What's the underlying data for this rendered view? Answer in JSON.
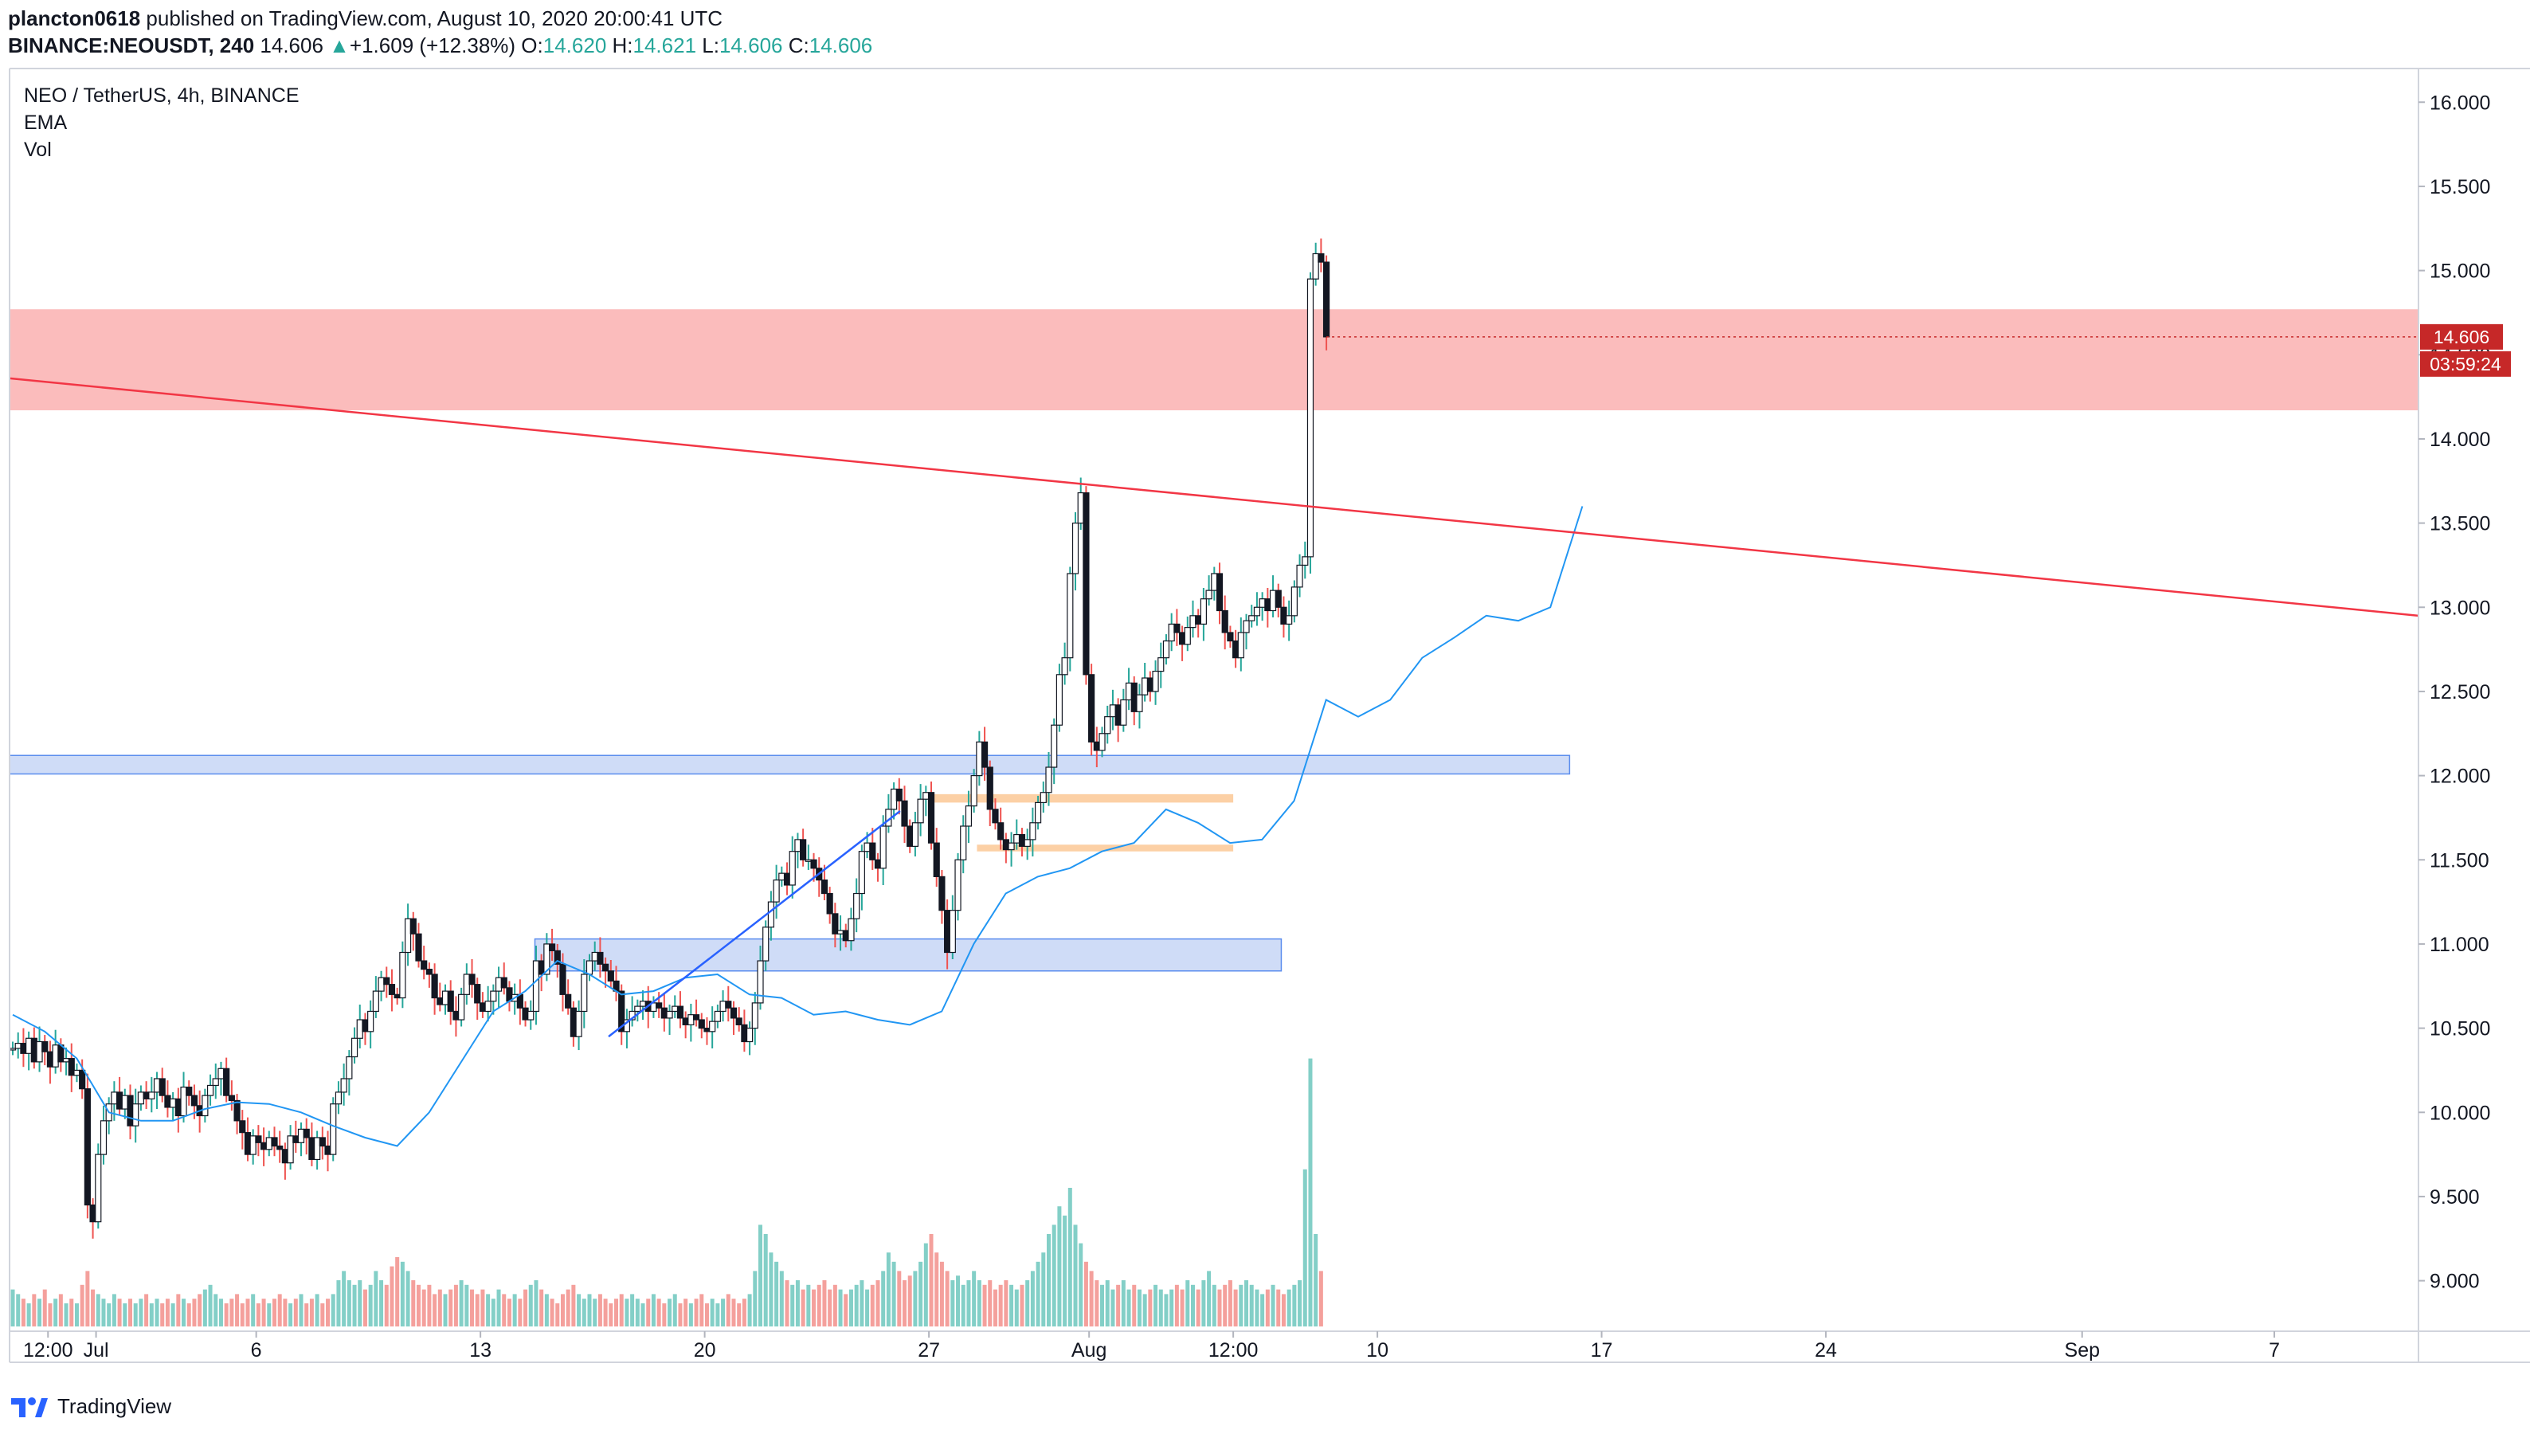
{
  "header": {
    "author": "plancton0618",
    "published_text": " published on TradingView.com, August 10, 2020 20:00:41 UTC",
    "symbol_line": "BINANCE:NEOUSDT, 240",
    "last_price": "14.606",
    "change_arrow": "▲",
    "change": "+1.609 (+12.38%)",
    "o_label": "O:",
    "o_value": "14.620",
    "h_label": "H:",
    "h_value": "14.621",
    "l_label": "L:",
    "l_value": "14.606",
    "c_label": "C:",
    "c_value": "14.606"
  },
  "footer": {
    "brand": "TradingView",
    "brand_icon": "tradingview-logo-icon"
  },
  "colors": {
    "bull": "#26a69a",
    "bear": "#ef5350",
    "candle_body": "#131722",
    "ema": "#2196f3",
    "resistance_line": "#f23645",
    "supply_zone": "#fbbcbc",
    "demand_zone": "#cfdcf7",
    "demand_zone_border": "#5b8dee",
    "orange_zone": "#fcd0a5",
    "channel_line": "#2962ff",
    "price_label_bg": "#c62828",
    "vol_up": "#83cfc7",
    "vol_down": "#f4a09c"
  },
  "chart_data": {
    "type": "candlestick",
    "title": "NEO / TetherUS, 4h, BINANCE",
    "indicators": [
      "EMA",
      "Vol"
    ],
    "ylim": [
      8.7,
      16.2
    ],
    "y_ticks": [
      9.0,
      9.5,
      10.0,
      10.5,
      11.0,
      11.5,
      12.0,
      12.5,
      13.0,
      13.5,
      14.0,
      14.5,
      15.0,
      15.5,
      16.0
    ],
    "y_tick_labels": [
      "9.000",
      "9.500",
      "10.000",
      "10.500",
      "11.000",
      "11.500",
      "12.000",
      "12.500",
      "13.000",
      "13.500",
      "14.000",
      "14.500",
      "15.000",
      "15.500",
      "16.000"
    ],
    "x_tick_labels": [
      "12:00",
      "Jul",
      "6",
      "13",
      "20",
      "27",
      "Aug",
      "12:00",
      "10",
      "17",
      "24",
      "Sep",
      "7"
    ],
    "x_tick_days": [
      -0.5,
      1,
      6,
      13,
      20,
      27,
      32,
      36.5,
      41,
      48,
      55,
      63,
      69
    ],
    "x_range_days": [
      -1.7,
      73.5
    ],
    "last_price_label": "14.606",
    "countdown_label": "03:59:24",
    "ema_last": 13.6,
    "candles": {
      "start_day": -1.6,
      "bar_days": 0.1667,
      "open0": 10.38,
      "closes": [
        10.38,
        10.41,
        10.35,
        10.44,
        10.3,
        10.42,
        10.36,
        10.27,
        10.4,
        10.3,
        10.32,
        10.22,
        10.25,
        10.14,
        9.45,
        9.35,
        9.75,
        9.95,
        10.05,
        10.12,
        10.02,
        10.1,
        9.92,
        10.05,
        10.12,
        10.08,
        10.12,
        10.2,
        10.1,
        10.03,
        10.08,
        9.98,
        10.15,
        10.1,
        10.04,
        9.98,
        10.1,
        10.16,
        10.2,
        10.26,
        10.1,
        10.07,
        9.95,
        9.88,
        9.75,
        9.86,
        9.82,
        9.78,
        9.85,
        9.8,
        9.78,
        9.7,
        9.86,
        9.82,
        9.9,
        9.85,
        9.72,
        9.85,
        9.8,
        9.75,
        10.05,
        10.12,
        10.2,
        10.33,
        10.44,
        10.55,
        10.48,
        10.6,
        10.72,
        10.8,
        10.76,
        10.7,
        10.68,
        10.95,
        11.15,
        11.06,
        10.9,
        10.85,
        10.82,
        10.68,
        10.64,
        10.72,
        10.6,
        10.55,
        10.7,
        10.82,
        10.76,
        10.65,
        10.6,
        10.66,
        10.72,
        10.8,
        10.74,
        10.66,
        10.7,
        10.62,
        10.55,
        10.6,
        10.9,
        10.82,
        11.0,
        10.96,
        10.88,
        10.7,
        10.62,
        10.45,
        10.6,
        10.82,
        10.9,
        10.95,
        10.88,
        10.84,
        10.78,
        10.72,
        10.48,
        10.55,
        10.6,
        10.63,
        10.66,
        10.6,
        10.65,
        10.62,
        10.56,
        10.6,
        10.63,
        10.56,
        10.52,
        10.58,
        10.55,
        10.5,
        10.48,
        10.54,
        10.6,
        10.66,
        10.62,
        10.56,
        10.52,
        10.42,
        10.5,
        10.65,
        10.9,
        11.1,
        11.25,
        11.38,
        11.42,
        11.35,
        11.55,
        11.62,
        11.5,
        11.5,
        11.45,
        11.38,
        11.3,
        11.18,
        11.06,
        11.08,
        11.02,
        11.15,
        11.3,
        11.55,
        11.6,
        11.5,
        11.45,
        11.7,
        11.8,
        11.92,
        11.85,
        11.7,
        11.58,
        11.72,
        11.86,
        11.9,
        11.6,
        11.4,
        11.2,
        10.95,
        11.2,
        11.5,
        11.7,
        11.82,
        12.0,
        12.2,
        12.05,
        11.8,
        11.72,
        11.62,
        11.56,
        11.6,
        11.65,
        11.58,
        11.62,
        11.72,
        11.84,
        11.9,
        12.05,
        12.3,
        12.6,
        12.7,
        13.2,
        13.5,
        13.68,
        12.6,
        12.2,
        12.15,
        12.25,
        12.35,
        12.42,
        12.3,
        12.45,
        12.55,
        12.38,
        12.48,
        12.58,
        12.5,
        12.62,
        12.7,
        12.8,
        12.9,
        12.85,
        12.78,
        12.88,
        12.95,
        12.9,
        13.05,
        13.1,
        13.2,
        12.98,
        12.85,
        12.8,
        12.7,
        12.85,
        12.92,
        12.95,
        13.0,
        13.05,
        12.98,
        13.1,
        13.0,
        12.9,
        12.95,
        13.12,
        13.25,
        13.3,
        14.95,
        15.1,
        15.05,
        14.606
      ]
    },
    "ema": {
      "start_day": -1.6,
      "step_days": 1.0,
      "values": [
        10.58,
        10.48,
        10.32,
        10.0,
        9.95,
        9.95,
        10.02,
        10.06,
        10.05,
        10.0,
        9.92,
        9.85,
        9.8,
        10.0,
        10.3,
        10.6,
        10.72,
        10.9,
        10.82,
        10.7,
        10.72,
        10.8,
        10.82,
        10.7,
        10.68,
        10.58,
        10.6,
        10.55,
        10.52,
        10.6,
        11.0,
        11.3,
        11.4,
        11.45,
        11.55,
        11.6,
        11.8,
        11.72,
        11.6,
        11.62,
        11.85,
        12.45,
        12.35,
        12.45,
        12.7,
        12.82,
        12.95,
        12.92,
        13.0,
        13.6
      ]
    },
    "volume": {
      "start_day": -1.6,
      "bar_days": 0.1667,
      "max": 1,
      "values": [
        0.08,
        0.07,
        0.06,
        0.05,
        0.07,
        0.06,
        0.08,
        0.05,
        0.06,
        0.07,
        0.05,
        0.06,
        0.05,
        0.09,
        0.12,
        0.08,
        0.07,
        0.06,
        0.05,
        0.07,
        0.06,
        0.05,
        0.06,
        0.05,
        0.06,
        0.07,
        0.05,
        0.06,
        0.05,
        0.06,
        0.05,
        0.07,
        0.06,
        0.05,
        0.06,
        0.07,
        0.08,
        0.09,
        0.07,
        0.06,
        0.05,
        0.06,
        0.07,
        0.05,
        0.06,
        0.07,
        0.05,
        0.06,
        0.05,
        0.06,
        0.07,
        0.06,
        0.05,
        0.06,
        0.07,
        0.05,
        0.06,
        0.07,
        0.05,
        0.06,
        0.07,
        0.1,
        0.12,
        0.1,
        0.09,
        0.1,
        0.08,
        0.09,
        0.12,
        0.1,
        0.09,
        0.13,
        0.15,
        0.14,
        0.12,
        0.1,
        0.09,
        0.08,
        0.09,
        0.07,
        0.08,
        0.07,
        0.08,
        0.09,
        0.1,
        0.09,
        0.08,
        0.07,
        0.08,
        0.07,
        0.06,
        0.08,
        0.07,
        0.06,
        0.07,
        0.06,
        0.08,
        0.09,
        0.1,
        0.08,
        0.07,
        0.06,
        0.05,
        0.07,
        0.08,
        0.09,
        0.07,
        0.06,
        0.07,
        0.06,
        0.07,
        0.06,
        0.05,
        0.06,
        0.07,
        0.06,
        0.07,
        0.06,
        0.05,
        0.06,
        0.07,
        0.06,
        0.05,
        0.06,
        0.07,
        0.05,
        0.06,
        0.05,
        0.06,
        0.07,
        0.05,
        0.06,
        0.05,
        0.06,
        0.07,
        0.06,
        0.05,
        0.06,
        0.07,
        0.12,
        0.22,
        0.2,
        0.16,
        0.14,
        0.12,
        0.1,
        0.09,
        0.1,
        0.08,
        0.09,
        0.08,
        0.09,
        0.1,
        0.08,
        0.09,
        0.08,
        0.07,
        0.08,
        0.09,
        0.1,
        0.08,
        0.09,
        0.1,
        0.12,
        0.16,
        0.14,
        0.12,
        0.1,
        0.11,
        0.12,
        0.14,
        0.18,
        0.2,
        0.16,
        0.14,
        0.12,
        0.1,
        0.11,
        0.09,
        0.1,
        0.12,
        0.1,
        0.09,
        0.1,
        0.08,
        0.09,
        0.1,
        0.09,
        0.08,
        0.09,
        0.1,
        0.12,
        0.14,
        0.16,
        0.2,
        0.22,
        0.26,
        0.24,
        0.3,
        0.22,
        0.18,
        0.14,
        0.12,
        0.1,
        0.09,
        0.1,
        0.08,
        0.09,
        0.1,
        0.08,
        0.09,
        0.08,
        0.07,
        0.08,
        0.09,
        0.08,
        0.07,
        0.08,
        0.09,
        0.08,
        0.1,
        0.09,
        0.08,
        0.1,
        0.12,
        0.09,
        0.08,
        0.09,
        0.1,
        0.08,
        0.09,
        0.1,
        0.09,
        0.08,
        0.07,
        0.08,
        0.09,
        0.08,
        0.07,
        0.08,
        0.09,
        0.1,
        0.34,
        0.58,
        0.2,
        0.12
      ]
    },
    "zones": [
      {
        "name": "supply-zone",
        "kind": "supply",
        "y0": 14.17,
        "y1": 14.77,
        "x0_day": -1.7,
        "x1_day": 73.5
      },
      {
        "name": "demand-zone-upper",
        "kind": "demand",
        "y0": 12.01,
        "y1": 12.12,
        "x0_day": -1.7,
        "x1_day": 47.0
      },
      {
        "name": "demand-zone-lower",
        "kind": "demand",
        "y0": 10.84,
        "y1": 11.03,
        "x0_day": 14.7,
        "x1_day": 38.0
      },
      {
        "name": "orange-zone-upper",
        "kind": "orange",
        "y0": 11.84,
        "y1": 11.89,
        "x0_day": 27.0,
        "x1_day": 36.5
      },
      {
        "name": "orange-zone-lower",
        "kind": "orange",
        "y0": 11.55,
        "y1": 11.59,
        "x0_day": 28.5,
        "x1_day": 36.5
      }
    ],
    "resistance_line": {
      "x0_day": -1.7,
      "y0": 14.36,
      "x1_day": 73.5,
      "y1": 12.95
    },
    "channel_line": {
      "x0_day": 17.0,
      "y0": 10.45,
      "x1_day": 26.1,
      "y1": 11.79
    }
  }
}
